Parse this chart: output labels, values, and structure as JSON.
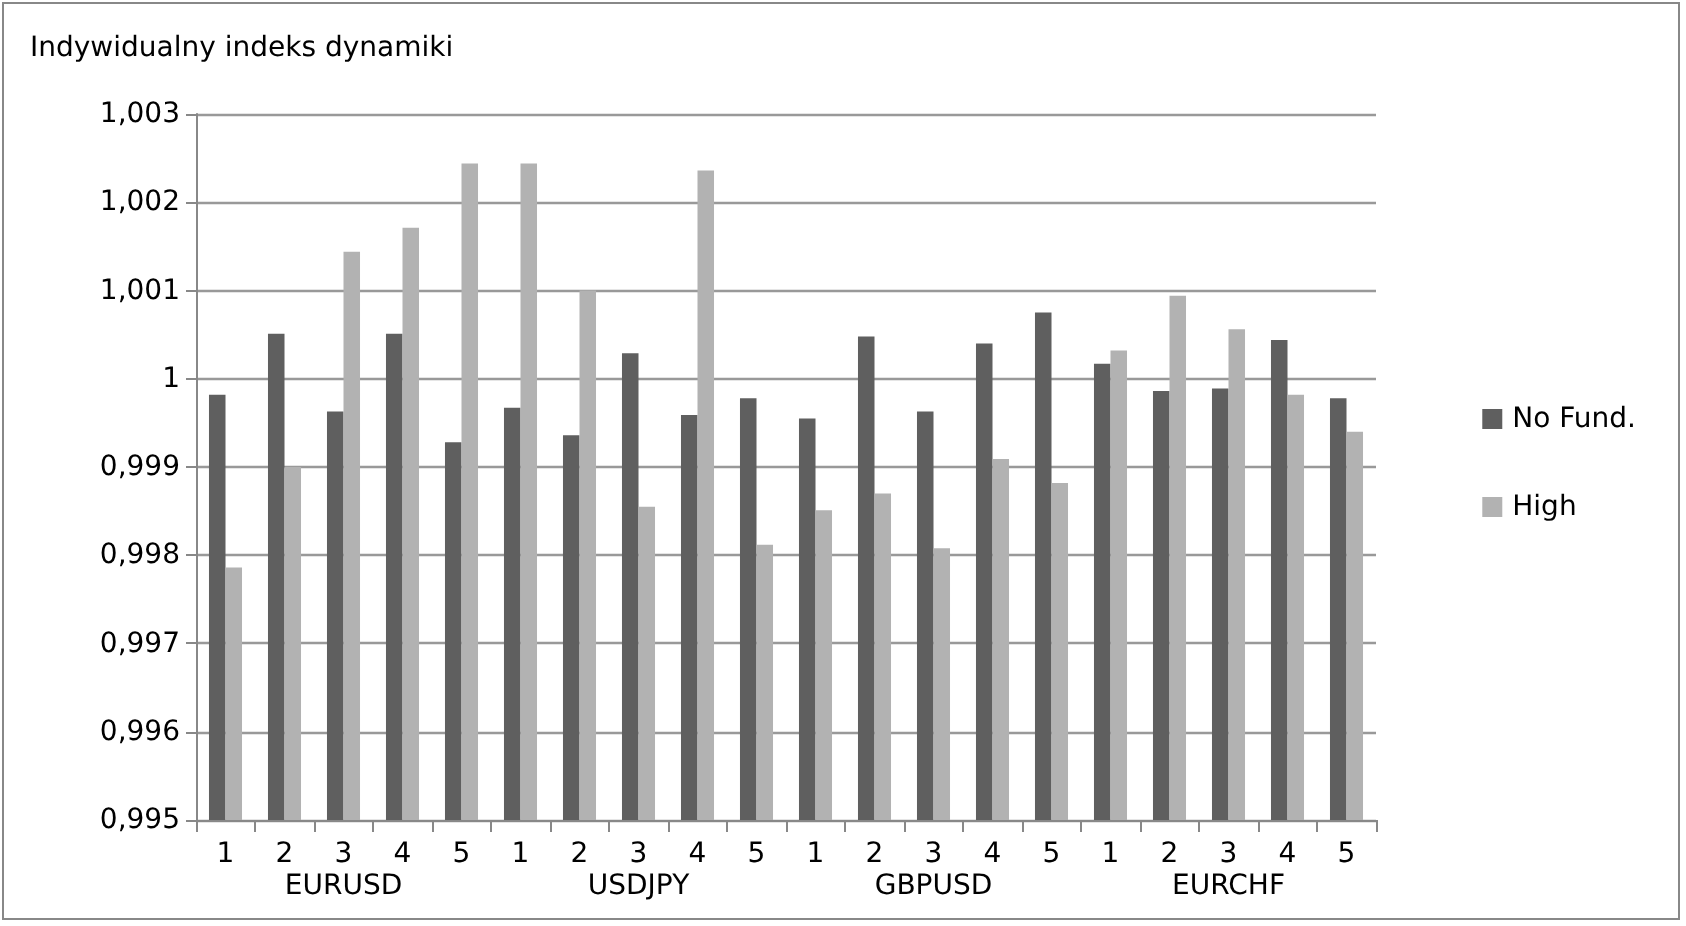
{
  "chart_data": {
    "type": "bar",
    "ylabel": "Indywidualny indeks dynamiki",
    "categories": [
      "1",
      "2",
      "3",
      "4",
      "5",
      "1",
      "2",
      "3",
      "4",
      "5",
      "1",
      "2",
      "3",
      "4",
      "5",
      "1",
      "2",
      "3",
      "4",
      "5"
    ],
    "annotations": [
      "EURUSD",
      "USDJPY",
      "GBPUSD",
      "EURCHF"
    ],
    "series": [
      {
        "name": "No Fund.",
        "color": "#5f5f5f",
        "values": [
          0.99982,
          1.00051,
          0.99963,
          1.00051,
          0.99928,
          0.99967,
          0.99936,
          1.00029,
          0.99959,
          0.99978,
          0.99955,
          1.00048,
          0.99963,
          1.0004,
          1.00075,
          1.00017,
          0.99986,
          0.99989,
          1.00044,
          0.99978
        ]
      },
      {
        "name": "High",
        "color": "#b2b2b2",
        "values": [
          0.99786,
          0.999,
          1.00144,
          1.00171,
          1.00244,
          1.00244,
          1.001,
          0.99855,
          1.00236,
          0.99812,
          0.99851,
          0.9987,
          0.99808,
          0.99909,
          0.99882,
          1.00032,
          1.00094,
          1.00056,
          0.99982,
          0.9994
        ]
      }
    ],
    "ylim": [
      0.995,
      1.003
    ],
    "yticks": [
      {
        "value": 0.995,
        "label": "0,995"
      },
      {
        "value": 0.996,
        "label": "0,996"
      },
      {
        "value": 0.997,
        "label": "0,997"
      },
      {
        "value": 0.998,
        "label": "0,998"
      },
      {
        "value": 0.999,
        "label": "0,999"
      },
      {
        "value": 1,
        "label": "1"
      },
      {
        "value": 1.001,
        "label": "1,001"
      },
      {
        "value": 1.002,
        "label": "1,002"
      },
      {
        "value": 1.003,
        "label": "1,003"
      }
    ],
    "grid": "y",
    "legend": "right"
  }
}
